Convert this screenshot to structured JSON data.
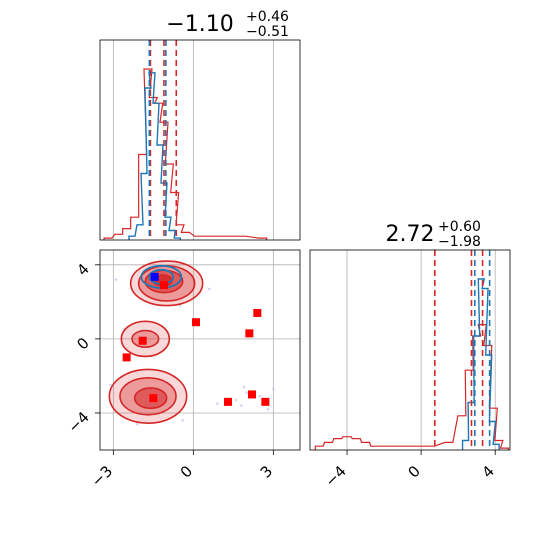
{
  "chart_data": {
    "type": "corner",
    "parameters": [
      "p0",
      "p1"
    ],
    "titles": [
      {
        "value": "−1.10",
        "sup": "+0.46",
        "sub": "−0.51"
      },
      {
        "value": "2.72",
        "sup": "+0.60",
        "sub": "−1.98"
      }
    ],
    "colors": {
      "series_a": "#d62728",
      "series_b": "#1f77b4",
      "marker_a": "#ff0000",
      "marker_b": "#0000ff"
    },
    "ranges": {
      "p0": [
        -3.5,
        4.0
      ],
      "p1": [
        -6.0,
        4.8
      ]
    },
    "ticks": {
      "p0": {
        "values": [
          -3,
          0,
          3
        ],
        "labels": [
          "−3",
          "0",
          "3"
        ]
      },
      "p1": {
        "values": [
          -4,
          0,
          4
        ],
        "labels": [
          "−4",
          "0",
          "4"
        ]
      }
    },
    "marginal_p0": {
      "red_quantile_lines": [
        -1.61,
        -1.1,
        -0.64
      ],
      "blue_quantile_lines": [
        -1.65,
        -1.03
      ],
      "red_hist": [
        {
          "x": -3.2,
          "y": 0.01
        },
        {
          "x": -2.8,
          "y": 0.03
        },
        {
          "x": -2.5,
          "y": 0.06
        },
        {
          "x": -2.2,
          "y": 0.12
        },
        {
          "x": -1.9,
          "y": 0.45
        },
        {
          "x": -1.7,
          "y": 0.9
        },
        {
          "x": -1.5,
          "y": 0.75
        },
        {
          "x": -1.3,
          "y": 0.72
        },
        {
          "x": -1.1,
          "y": 0.62
        },
        {
          "x": -0.9,
          "y": 0.4
        },
        {
          "x": -0.7,
          "y": 0.25
        },
        {
          "x": -0.5,
          "y": 0.08
        },
        {
          "x": -0.3,
          "y": 0.04
        },
        {
          "x": 0.2,
          "y": 0.02
        },
        {
          "x": 1.0,
          "y": 0.02
        },
        {
          "x": 1.8,
          "y": 0.02
        },
        {
          "x": 2.6,
          "y": 0.01
        }
      ],
      "blue_hist": [
        {
          "x": -2.3,
          "y": 0.02
        },
        {
          "x": -2.0,
          "y": 0.08
        },
        {
          "x": -1.85,
          "y": 0.35
        },
        {
          "x": -1.7,
          "y": 0.8
        },
        {
          "x": -1.55,
          "y": 0.88
        },
        {
          "x": -1.4,
          "y": 0.72
        },
        {
          "x": -1.25,
          "y": 0.5
        },
        {
          "x": -1.1,
          "y": 0.3
        },
        {
          "x": -0.95,
          "y": 0.12
        },
        {
          "x": -0.8,
          "y": 0.05
        },
        {
          "x": -0.6,
          "y": 0.01
        }
      ]
    },
    "marginal_p1": {
      "red_quantile_lines": [
        0.74,
        2.72,
        3.32
      ],
      "blue_quantile_lines": [
        2.9,
        3.7
      ],
      "red_hist": [
        {
          "x": -5.5,
          "y": 0.02
        },
        {
          "x": -5.0,
          "y": 0.04
        },
        {
          "x": -4.5,
          "y": 0.06
        },
        {
          "x": -4.0,
          "y": 0.07
        },
        {
          "x": -3.5,
          "y": 0.06
        },
        {
          "x": -3.0,
          "y": 0.04
        },
        {
          "x": -2.5,
          "y": 0.02
        },
        {
          "x": -1.0,
          "y": 0.02
        },
        {
          "x": 0.5,
          "y": 0.02
        },
        {
          "x": 1.5,
          "y": 0.04
        },
        {
          "x": 2.2,
          "y": 0.18
        },
        {
          "x": 2.6,
          "y": 0.42
        },
        {
          "x": 3.0,
          "y": 0.6
        },
        {
          "x": 3.3,
          "y": 0.66
        },
        {
          "x": 3.6,
          "y": 0.55
        },
        {
          "x": 3.9,
          "y": 0.22
        },
        {
          "x": 4.2,
          "y": 0.05
        },
        {
          "x": 4.5,
          "y": 0.01
        }
      ],
      "blue_hist": [
        {
          "x": 2.4,
          "y": 0.05
        },
        {
          "x": 2.7,
          "y": 0.25
        },
        {
          "x": 3.0,
          "y": 0.6
        },
        {
          "x": 3.25,
          "y": 0.9
        },
        {
          "x": 3.45,
          "y": 0.85
        },
        {
          "x": 3.65,
          "y": 0.5
        },
        {
          "x": 3.85,
          "y": 0.15
        },
        {
          "x": 4.05,
          "y": 0.03
        }
      ]
    },
    "joint": {
      "red_contours": [
        {
          "cx": -1.0,
          "cy": 3.0,
          "rx": 1.35,
          "ry": 1.2,
          "level": 0
        },
        {
          "cx": -1.0,
          "cy": 3.0,
          "rx": 1.05,
          "ry": 0.95,
          "level": 1
        },
        {
          "cx": -1.1,
          "cy": 3.1,
          "rx": 0.7,
          "ry": 0.6,
          "level": 2
        },
        {
          "cx": -1.15,
          "cy": 3.15,
          "rx": 0.35,
          "ry": 0.3,
          "level": 3
        },
        {
          "cx": -1.8,
          "cy": 0.0,
          "rx": 0.9,
          "ry": 0.95,
          "level": 0
        },
        {
          "cx": -1.8,
          "cy": 0.0,
          "rx": 0.5,
          "ry": 0.45,
          "level": 1
        },
        {
          "cx": -1.7,
          "cy": -3.1,
          "rx": 1.45,
          "ry": 1.45,
          "level": 0
        },
        {
          "cx": -1.7,
          "cy": -3.1,
          "rx": 1.05,
          "ry": 1.0,
          "level": 1
        },
        {
          "cx": -1.6,
          "cy": -3.2,
          "rx": 0.6,
          "ry": 0.55,
          "level": 2
        }
      ],
      "blue_contours": [
        {
          "cx": -1.2,
          "cy": 3.35,
          "rx": 0.75,
          "ry": 0.6
        },
        {
          "cx": -1.2,
          "cy": 3.35,
          "rx": 0.45,
          "ry": 0.38
        }
      ],
      "red_squares": [
        {
          "x": -1.1,
          "y": 2.9
        },
        {
          "x": -1.9,
          "y": -0.1
        },
        {
          "x": -2.5,
          "y": -1.0
        },
        {
          "x": 0.1,
          "y": 0.9
        },
        {
          "x": 2.4,
          "y": 1.4
        },
        {
          "x": 2.1,
          "y": 0.3
        },
        {
          "x": -1.5,
          "y": -3.2
        },
        {
          "x": 1.3,
          "y": -3.4
        },
        {
          "x": 2.2,
          "y": -3.0
        },
        {
          "x": 2.7,
          "y": -3.4
        }
      ],
      "blue_squares": [
        {
          "x": -1.45,
          "y": 3.35
        }
      ],
      "scatter_points": [
        {
          "x": 1.9,
          "y": -2.6
        },
        {
          "x": 2.0,
          "y": -2.9
        },
        {
          "x": 1.8,
          "y": -3.6
        },
        {
          "x": 2.5,
          "y": -3.1
        },
        {
          "x": 3.0,
          "y": -2.7
        },
        {
          "x": 0.9,
          "y": -3.5
        },
        {
          "x": 1.6,
          "y": -3.3
        },
        {
          "x": 2.8,
          "y": -3.8
        },
        {
          "x": -3.1,
          "y": -2.5
        },
        {
          "x": -2.6,
          "y": 0.5
        },
        {
          "x": -0.5,
          "y": 1.8
        },
        {
          "x": 0.6,
          "y": 2.7
        },
        {
          "x": -2.1,
          "y": -4.6
        },
        {
          "x": -0.4,
          "y": -4.4
        },
        {
          "x": -2.9,
          "y": 3.2
        }
      ]
    }
  }
}
